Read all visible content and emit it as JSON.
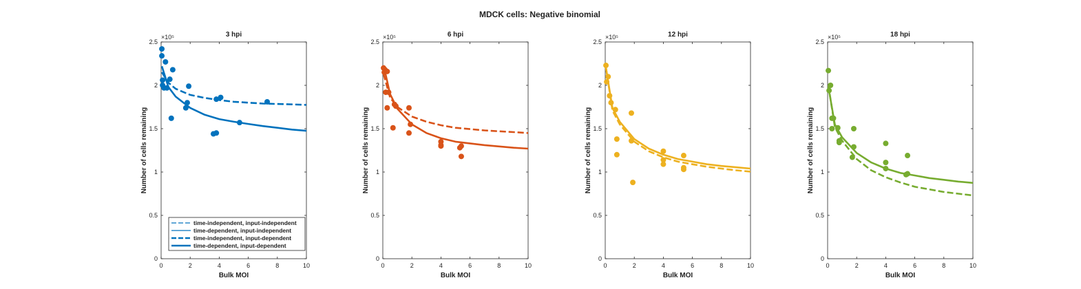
{
  "figure": {
    "title": "MDCK cells: Negative binomial"
  },
  "legend_entries": [
    "time-independent, input-independent",
    "time-dependent, input-independent",
    "time-independent, input-dependent",
    "time-dependent, input-dependent"
  ],
  "chart_data": [
    {
      "type": "scatter",
      "title": "3 hpi",
      "xlabel": "Bulk MOI",
      "ylabel": "Number of cells remaining",
      "y_exponent": "×10⁵",
      "xlim": [
        0,
        10
      ],
      "ylim": [
        0,
        2.5
      ],
      "xticks": [
        "0",
        "2",
        "4",
        "6",
        "8",
        "10"
      ],
      "yticks": [
        "0",
        "0.5",
        "1",
        "1.5",
        "2",
        "2.5"
      ],
      "color": "#0072BD",
      "legend_placement": "bottom-right",
      "points": {
        "x": [
          0.05,
          0.05,
          0.1,
          0.1,
          0.2,
          0.3,
          0.4,
          0.6,
          0.7,
          0.8,
          1.7,
          1.8,
          1.9,
          3.6,
          3.8,
          3.8,
          4.1,
          5.4,
          7.3
        ],
        "y": [
          2.42,
          2.34,
          2.06,
          2.0,
          1.97,
          2.27,
          1.97,
          2.07,
          1.62,
          2.18,
          1.74,
          1.8,
          1.99,
          1.44,
          1.45,
          1.84,
          1.86,
          1.57,
          1.81
        ]
      },
      "series": [
        {
          "name": "time-independent, input-independent",
          "style": "dashed-thin",
          "x": [
            0.05,
            0.5,
            1,
            2,
            3,
            4,
            5,
            6,
            7,
            8,
            9,
            10
          ],
          "y": [
            2.15,
            2.03,
            1.96,
            1.89,
            1.855,
            1.83,
            1.81,
            1.8,
            1.79,
            1.785,
            1.78,
            1.775
          ]
        },
        {
          "name": "time-dependent, input-independent",
          "style": "solid-thin",
          "x": [
            0.05,
            0.5,
            1,
            2,
            3,
            4,
            5,
            6,
            7,
            8,
            9,
            10
          ],
          "y": [
            2.22,
            1.98,
            1.87,
            1.74,
            1.66,
            1.61,
            1.58,
            1.555,
            1.53,
            1.51,
            1.49,
            1.475
          ]
        },
        {
          "name": "time-independent, input-dependent",
          "style": "dashed-thick",
          "x": [
            0.05,
            0.5,
            1,
            2,
            3,
            4,
            5,
            6,
            7,
            8,
            9,
            10
          ],
          "y": [
            2.15,
            2.03,
            1.96,
            1.89,
            1.855,
            1.83,
            1.81,
            1.8,
            1.79,
            1.785,
            1.78,
            1.775
          ]
        },
        {
          "name": "time-dependent, input-dependent",
          "style": "solid-thick",
          "x": [
            0.05,
            0.5,
            1,
            2,
            3,
            4,
            5,
            6,
            7,
            8,
            9,
            10
          ],
          "y": [
            2.22,
            1.98,
            1.87,
            1.74,
            1.66,
            1.61,
            1.58,
            1.555,
            1.53,
            1.51,
            1.49,
            1.475
          ]
        }
      ]
    },
    {
      "type": "scatter",
      "title": "6 hpi",
      "xlabel": "Bulk MOI",
      "ylabel": "Number of cells remaining",
      "y_exponent": "×10⁵",
      "xlim": [
        0,
        10
      ],
      "ylim": [
        0,
        2.5
      ],
      "xticks": [
        "0",
        "2",
        "4",
        "6",
        "8",
        "10"
      ],
      "yticks": [
        "0",
        "0.5",
        "1",
        "1.5",
        "2",
        "2.5"
      ],
      "color": "#D95319",
      "points": {
        "x": [
          0.05,
          0.1,
          0.15,
          0.2,
          0.3,
          0.3,
          0.4,
          0.7,
          0.8,
          0.9,
          1.8,
          1.8,
          1.9,
          4.0,
          4.0,
          4.0,
          5.3,
          5.4,
          5.4
        ],
        "y": [
          2.2,
          2.15,
          2.18,
          1.92,
          2.16,
          1.74,
          1.92,
          1.51,
          1.78,
          1.76,
          1.74,
          1.45,
          1.55,
          1.35,
          1.3,
          1.31,
          1.28,
          1.18,
          1.3
        ]
      },
      "series": [
        {
          "name": "time-independent, input-independent",
          "style": "dashed-thin",
          "x": [
            0.05,
            0.5,
            1,
            2,
            3,
            4,
            5,
            6,
            7,
            8,
            9,
            10
          ],
          "y": [
            2.13,
            1.86,
            1.75,
            1.64,
            1.58,
            1.54,
            1.51,
            1.495,
            1.48,
            1.47,
            1.46,
            1.45
          ]
        },
        {
          "name": "time-dependent, input-independent",
          "style": "solid-thin",
          "x": [
            0.05,
            0.5,
            1,
            2,
            3,
            4,
            5,
            6,
            7,
            8,
            9,
            10
          ],
          "y": [
            2.23,
            1.9,
            1.73,
            1.55,
            1.45,
            1.39,
            1.35,
            1.33,
            1.31,
            1.295,
            1.28,
            1.27
          ]
        },
        {
          "name": "time-independent, input-dependent",
          "style": "dashed-thick",
          "x": [
            0.05,
            0.5,
            1,
            2,
            3,
            4,
            5,
            6,
            7,
            8,
            9,
            10
          ],
          "y": [
            2.13,
            1.86,
            1.75,
            1.64,
            1.58,
            1.54,
            1.51,
            1.495,
            1.48,
            1.47,
            1.46,
            1.45
          ]
        },
        {
          "name": "time-dependent, input-dependent",
          "style": "solid-thick",
          "x": [
            0.05,
            0.5,
            1,
            2,
            3,
            4,
            5,
            6,
            7,
            8,
            9,
            10
          ],
          "y": [
            2.23,
            1.9,
            1.73,
            1.55,
            1.45,
            1.39,
            1.35,
            1.33,
            1.31,
            1.295,
            1.28,
            1.27
          ]
        }
      ]
    },
    {
      "type": "scatter",
      "title": "12 hpi",
      "xlabel": "Bulk MOI",
      "ylabel": "Number of cells remaining",
      "y_exponent": "×10⁵",
      "xlim": [
        0,
        10
      ],
      "ylim": [
        0,
        2.5
      ],
      "xticks": [
        "0",
        "2",
        "4",
        "6",
        "8",
        "10"
      ],
      "yticks": [
        "0",
        "0.5",
        "1",
        "1.5",
        "2",
        "2.5"
      ],
      "color": "#EDB120",
      "points": {
        "x": [
          0.05,
          0.1,
          0.2,
          0.3,
          0.4,
          0.7,
          0.8,
          0.8,
          1.8,
          1.8,
          1.9,
          4.0,
          4.0,
          4.0,
          5.4,
          5.4,
          5.4
        ],
        "y": [
          2.23,
          2.04,
          2.1,
          1.88,
          1.8,
          1.72,
          1.38,
          1.2,
          1.68,
          1.36,
          0.88,
          1.24,
          1.14,
          1.09,
          1.19,
          1.05,
          1.03
        ]
      },
      "series": [
        {
          "name": "time-independent, input-independent",
          "style": "dashed-thin",
          "x": [
            0.05,
            0.5,
            1,
            2,
            3,
            4,
            5,
            6,
            7,
            8,
            9,
            10
          ],
          "y": [
            2.2,
            1.71,
            1.55,
            1.35,
            1.24,
            1.17,
            1.12,
            1.09,
            1.06,
            1.04,
            1.02,
            1.005
          ]
        },
        {
          "name": "time-dependent, input-independent",
          "style": "solid-thin",
          "x": [
            0.05,
            0.5,
            1,
            2,
            3,
            4,
            5,
            6,
            7,
            8,
            9,
            10
          ],
          "y": [
            2.2,
            1.74,
            1.58,
            1.38,
            1.27,
            1.2,
            1.15,
            1.12,
            1.09,
            1.07,
            1.055,
            1.04
          ]
        },
        {
          "name": "time-independent, input-dependent",
          "style": "dashed-thick",
          "x": [
            0.05,
            0.5,
            1,
            2,
            3,
            4,
            5,
            6,
            7,
            8,
            9,
            10
          ],
          "y": [
            2.2,
            1.71,
            1.55,
            1.35,
            1.24,
            1.17,
            1.12,
            1.09,
            1.06,
            1.04,
            1.02,
            1.005
          ]
        },
        {
          "name": "time-dependent, input-dependent",
          "style": "solid-thick",
          "x": [
            0.05,
            0.5,
            1,
            2,
            3,
            4,
            5,
            6,
            7,
            8,
            9,
            10
          ],
          "y": [
            2.2,
            1.74,
            1.58,
            1.38,
            1.27,
            1.2,
            1.15,
            1.12,
            1.09,
            1.07,
            1.055,
            1.04
          ]
        }
      ]
    },
    {
      "type": "scatter",
      "title": "18 hpi",
      "xlabel": "Bulk MOI",
      "ylabel": "Number of cells remaining",
      "y_exponent": "×10⁵",
      "xlim": [
        0,
        10
      ],
      "ylim": [
        0,
        2.5
      ],
      "xticks": [
        "0",
        "2",
        "4",
        "6",
        "8",
        "10"
      ],
      "yticks": [
        "0",
        "0.5",
        "1",
        "1.5",
        "2",
        "2.5"
      ],
      "color": "#77AC30",
      "points": {
        "x": [
          0.05,
          0.1,
          0.2,
          0.3,
          0.3,
          0.4,
          0.7,
          0.8,
          0.8,
          1.7,
          1.8,
          1.8,
          4.0,
          4.0,
          4.0,
          5.4,
          5.5,
          5.5
        ],
        "y": [
          2.17,
          1.94,
          2.0,
          1.62,
          1.5,
          1.62,
          1.51,
          1.36,
          1.34,
          1.17,
          1.29,
          1.5,
          1.33,
          1.11,
          1.04,
          0.97,
          0.98,
          1.19
        ]
      },
      "series": [
        {
          "name": "time-independent, input-independent",
          "style": "dashed-thin",
          "x": [
            0.05,
            0.5,
            1,
            2,
            3,
            4,
            5,
            6,
            7,
            8,
            9,
            10
          ],
          "y": [
            2.0,
            1.52,
            1.36,
            1.15,
            1.02,
            0.94,
            0.88,
            0.83,
            0.8,
            0.77,
            0.75,
            0.73
          ]
        },
        {
          "name": "time-dependent, input-independent",
          "style": "solid-thin",
          "x": [
            0.05,
            0.5,
            1,
            2,
            3,
            4,
            5,
            6,
            7,
            8,
            9,
            10
          ],
          "y": [
            1.98,
            1.55,
            1.4,
            1.22,
            1.11,
            1.04,
            0.99,
            0.96,
            0.93,
            0.91,
            0.89,
            0.875
          ]
        },
        {
          "name": "time-independent, input-dependent",
          "style": "dashed-thick",
          "x": [
            0.05,
            0.5,
            1,
            2,
            3,
            4,
            5,
            6,
            7,
            8,
            9,
            10
          ],
          "y": [
            2.0,
            1.52,
            1.36,
            1.15,
            1.02,
            0.94,
            0.88,
            0.83,
            0.8,
            0.77,
            0.75,
            0.73
          ]
        },
        {
          "name": "time-dependent, input-dependent",
          "style": "solid-thick",
          "x": [
            0.05,
            0.5,
            1,
            2,
            3,
            4,
            5,
            6,
            7,
            8,
            9,
            10
          ],
          "y": [
            1.98,
            1.55,
            1.4,
            1.22,
            1.11,
            1.04,
            0.99,
            0.96,
            0.93,
            0.91,
            0.89,
            0.875
          ]
        }
      ]
    }
  ]
}
